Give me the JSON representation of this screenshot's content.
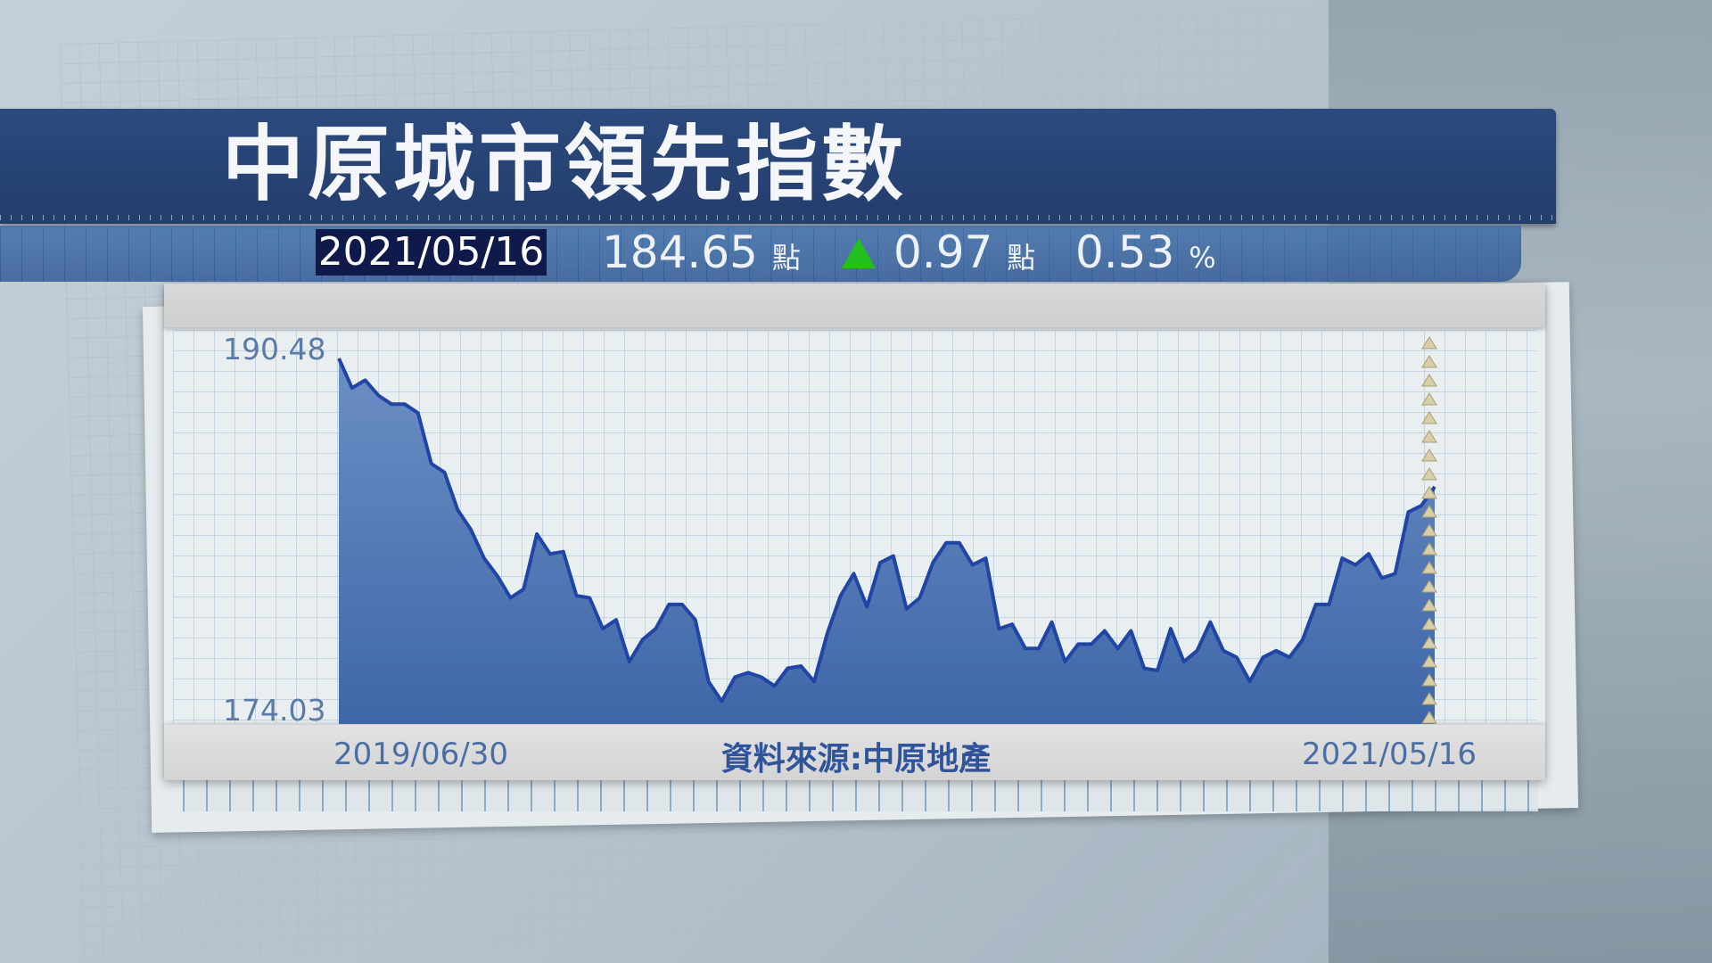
{
  "header": {
    "title": "中原城市領先指數",
    "date": "2021/05/16",
    "index_value": "184.65",
    "index_unit": "點",
    "change_icon": "up-triangle-icon",
    "change_value": "0.97",
    "change_unit": "點",
    "change_pct": "0.53",
    "pct_unit": "%"
  },
  "colors": {
    "title_bar": "#233d6c",
    "info_bar": "#2c5592",
    "area_fill": "#4d77b3",
    "line": "#1f45a6",
    "up": "#22c01e"
  },
  "chart_data": {
    "type": "area",
    "title": "中原城市領先指數",
    "source": "資料來源:中原地產",
    "x_labels": [
      "2019/06/30",
      "2021/05/16"
    ],
    "y_labels": [
      "190.48",
      "174.03"
    ],
    "ylim": [
      174.03,
      190.48
    ],
    "grid": true,
    "values": [
      190.48,
      189.14,
      189.49,
      188.8,
      188.4,
      188.4,
      188.0,
      185.7,
      185.3,
      183.6,
      182.7,
      181.4,
      180.6,
      179.6,
      180.0,
      182.5,
      181.6,
      181.7,
      179.7,
      179.6,
      178.2,
      178.6,
      176.7,
      177.7,
      178.2,
      179.3,
      179.3,
      178.6,
      175.8,
      174.9,
      176.0,
      176.2,
      176.0,
      175.6,
      176.4,
      176.5,
      175.8,
      178.0,
      179.7,
      180.7,
      179.2,
      181.2,
      181.5,
      179.1,
      179.6,
      181.2,
      182.1,
      182.1,
      181.1,
      181.4,
      178.2,
      178.4,
      177.3,
      177.3,
      178.5,
      176.7,
      177.5,
      177.5,
      178.1,
      177.3,
      178.1,
      176.4,
      176.3,
      178.2,
      176.7,
      177.2,
      178.5,
      177.2,
      176.9,
      175.8,
      176.9,
      177.2,
      176.9,
      177.7,
      179.3,
      179.3,
      181.4,
      181.1,
      181.6,
      180.5,
      180.7,
      183.5,
      183.8,
      184.65
    ]
  }
}
